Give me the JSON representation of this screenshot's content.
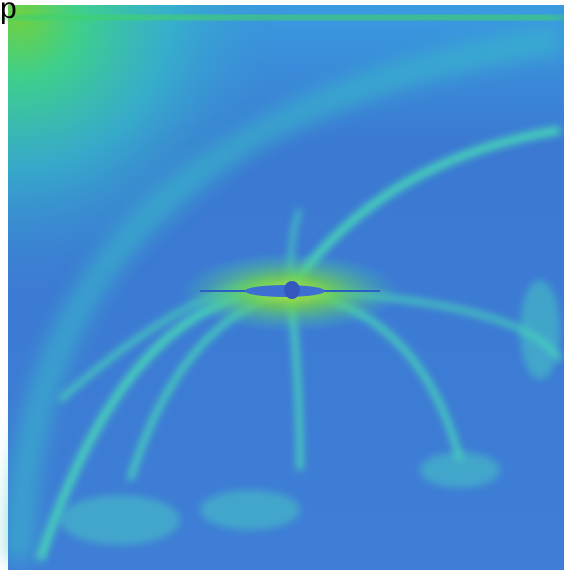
{
  "text": {
    "fragment": "p"
  }
}
